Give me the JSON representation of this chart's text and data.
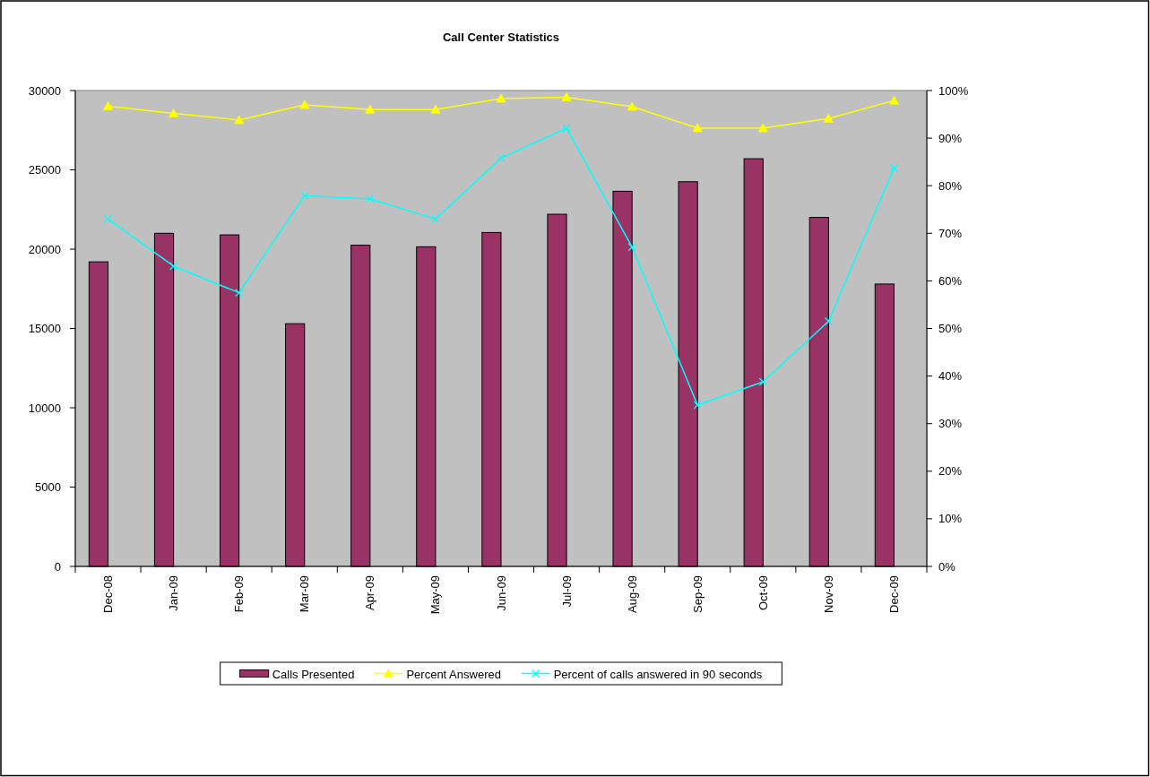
{
  "chart_data": {
    "type": "bar",
    "title": "Call Center Statistics",
    "categories": [
      "Dec-08",
      "Jan-09",
      "Feb-09",
      "Mar-09",
      "Apr-09",
      "May-09",
      "Jun-09",
      "Jul-09",
      "Aug-09",
      "Sep-09",
      "Oct-09",
      "Nov-09",
      "Dec-09"
    ],
    "series": [
      {
        "name": "Calls Presented",
        "color": "#993366",
        "values": [
          19200,
          21000,
          20900,
          15300,
          20250,
          20150,
          21050,
          22200,
          23650,
          24250,
          25700,
          22000,
          17800
        ]
      },
      {
        "name": "Percent Answered",
        "type": "line",
        "axis": "y2",
        "color": "#ffff00",
        "marker": "triangle",
        "values": [
          96.7,
          95.2,
          93.8,
          97.0,
          96.0,
          96.0,
          98.3,
          98.6,
          96.6,
          92.1,
          92.1,
          94.1,
          97.9
        ]
      },
      {
        "name": "Percent of calls answered in 90 seconds",
        "type": "line",
        "axis": "y2",
        "color": "#00ffff",
        "marker": "cross",
        "values": [
          73.0,
          63.1,
          57.5,
          77.9,
          77.2,
          73.0,
          85.8,
          92.1,
          67.1,
          33.9,
          38.8,
          51.5,
          83.7
        ]
      }
    ],
    "ylim": [
      0,
      30000
    ],
    "yticks": [
      0,
      5000,
      10000,
      15000,
      20000,
      25000,
      30000
    ],
    "y2lim": [
      0,
      100
    ],
    "y2ticks": [
      {
        "value": 0,
        "label": "0%"
      },
      {
        "value": 10,
        "label": "10%"
      },
      {
        "value": 20,
        "label": "20%"
      },
      {
        "value": 30,
        "label": "30%"
      },
      {
        "value": 40,
        "label": "40%"
      },
      {
        "value": 50,
        "label": "50%"
      },
      {
        "value": 60,
        "label": "60%"
      },
      {
        "value": 70,
        "label": "70%"
      },
      {
        "value": 80,
        "label": "80%"
      },
      {
        "value": 90,
        "label": "90%"
      },
      {
        "value": 100,
        "label": "100%"
      }
    ],
    "legend": "bottom"
  }
}
